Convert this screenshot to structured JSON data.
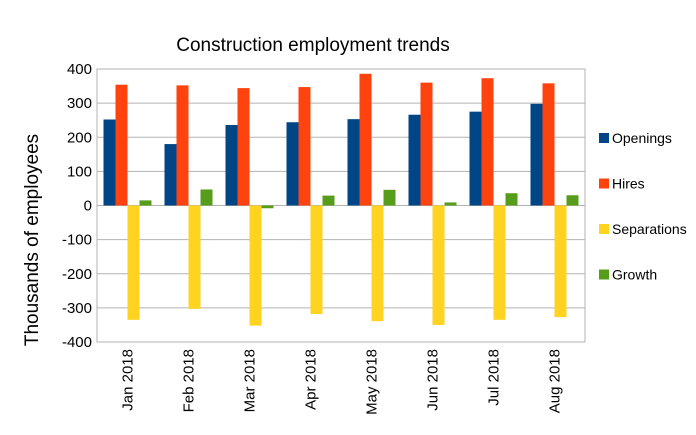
{
  "chart_data": {
    "type": "bar",
    "title": "Construction employment trends",
    "xlabel": "",
    "ylabel": "Thousands of employees",
    "ylim": [
      -400,
      400
    ],
    "yticks": [
      400,
      300,
      200,
      100,
      0,
      -100,
      -200,
      -300,
      -400
    ],
    "grid": true,
    "legend_position": "right",
    "categories": [
      "Jan 2018",
      "Feb 2018",
      "Mar 2018",
      "Apr 2018",
      "May 2018",
      "Jun 2018",
      "Jul 2018",
      "Aug 2018"
    ],
    "series": [
      {
        "name": "Openings",
        "color": "#004586",
        "values": [
          252,
          180,
          236,
          244,
          253,
          266,
          275,
          298
        ]
      },
      {
        "name": "Hires",
        "color": "#ff420e",
        "values": [
          354,
          352,
          344,
          347,
          386,
          360,
          373,
          358
        ]
      },
      {
        "name": "Separations",
        "color": "#ffd320",
        "values": [
          -335,
          -303,
          -352,
          -318,
          -339,
          -350,
          -335,
          -327
        ]
      },
      {
        "name": "Growth",
        "color": "#579d1c",
        "values": [
          15,
          47,
          -8,
          29,
          46,
          9,
          36,
          30
        ]
      }
    ]
  }
}
